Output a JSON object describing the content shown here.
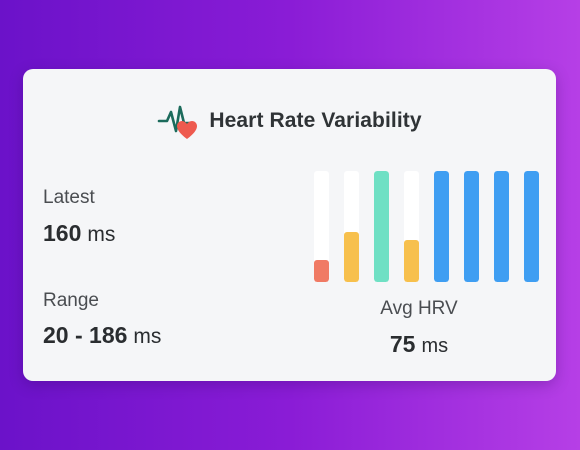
{
  "widget": {
    "title": "Heart Rate Variability",
    "header_icon": "heart-pulse-icon"
  },
  "latest": {
    "label": "Latest",
    "value": "160",
    "unit": "ms"
  },
  "range": {
    "label": "Range",
    "value": "20 - 186",
    "unit": "ms"
  },
  "average": {
    "label": "Avg HRV",
    "value": "75",
    "unit": "ms"
  },
  "bars": [
    {
      "fill": 0.2,
      "color": "#f07a64"
    },
    {
      "fill": 0.45,
      "color": "#f7c04d"
    },
    {
      "fill": 1.0,
      "color": "#6fe0c4"
    },
    {
      "fill": 0.38,
      "color": "#f7c04d"
    },
    {
      "fill": 1.0,
      "color": "#3f9ef2"
    },
    {
      "fill": 1.0,
      "color": "#3f9ef2"
    },
    {
      "fill": 1.0,
      "color": "#3f9ef2"
    },
    {
      "fill": 1.0,
      "color": "#3f9ef2"
    }
  ],
  "colors": {
    "pulse_line": "#1c6b5c",
    "heart": "#ee5a4f"
  }
}
